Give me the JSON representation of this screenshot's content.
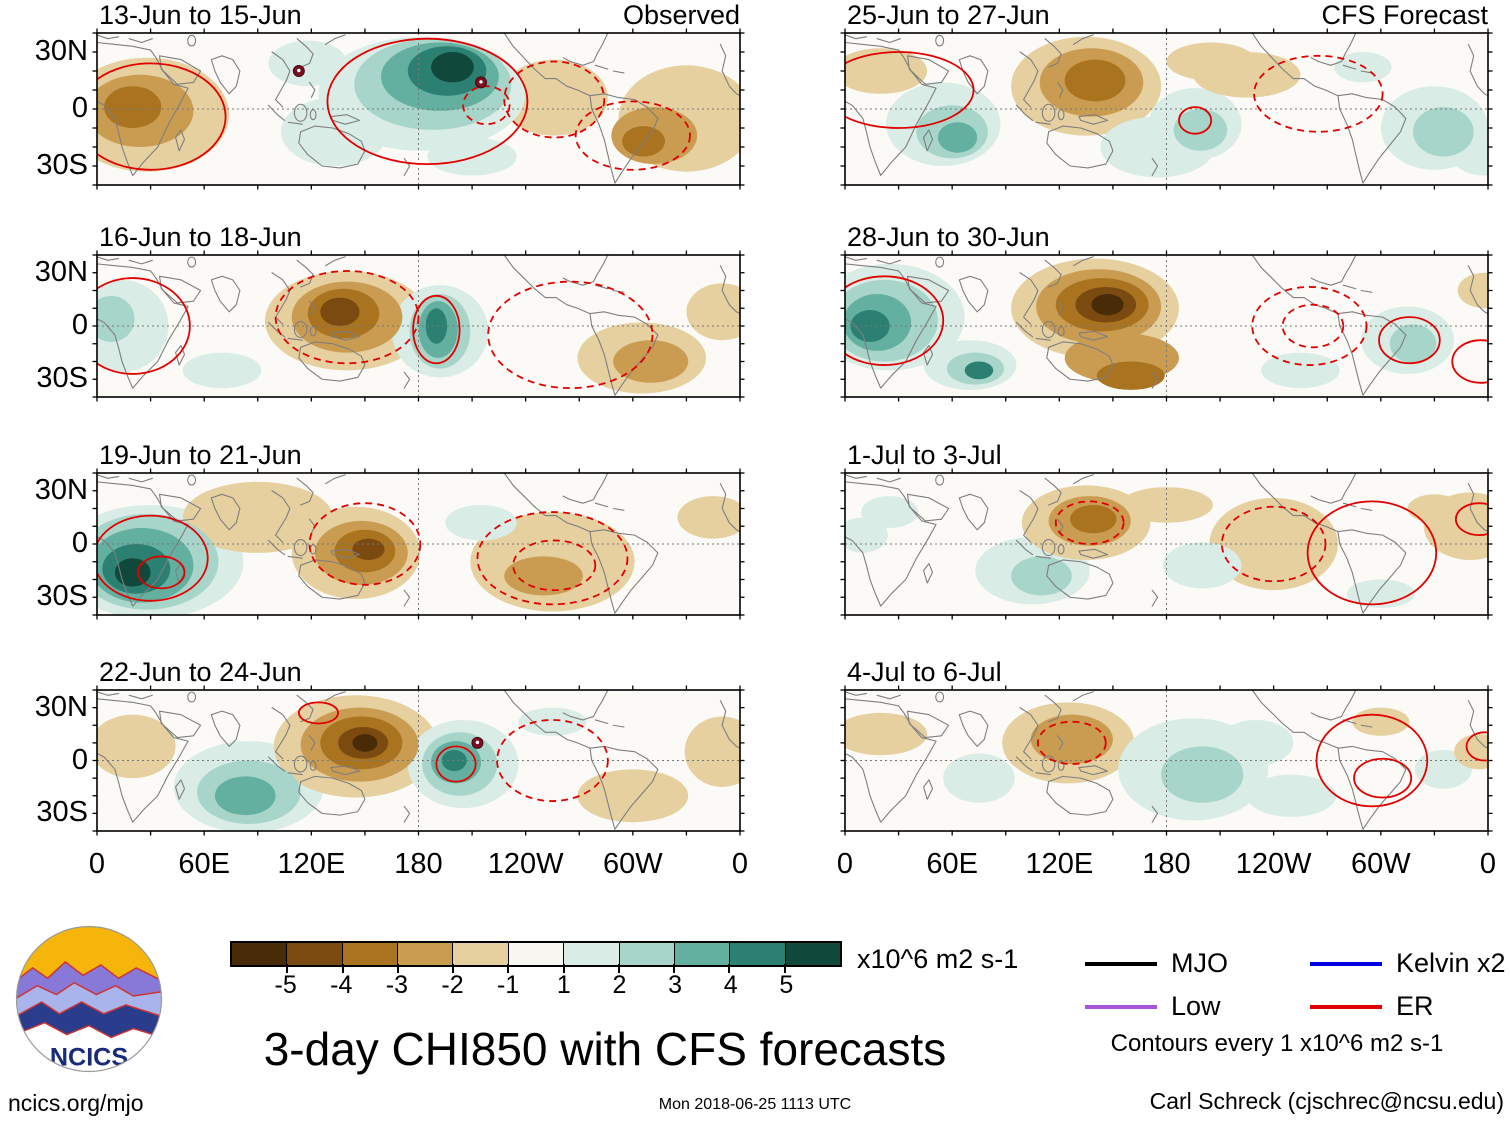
{
  "title": "3-day CHI850 with CFS forecasts",
  "footer": {
    "left": "ncics.org/mjo",
    "center": "Mon 2018-06-25 1113 UTC",
    "right": "Carl Schreck (cjschrec@ncsu.edu)"
  },
  "logo_text": "NCICS",
  "chart_data": {
    "type": "heatmap",
    "title": "3-day CHI850 with CFS forecasts",
    "observed_label": "Observed",
    "forecast_label": "CFS Forecast",
    "axis": {
      "x_ticks": [
        "0",
        "60E",
        "120E",
        "180",
        "120W",
        "60W",
        "0"
      ],
      "x_tick_lons": [
        0,
        60,
        120,
        180,
        240,
        300,
        360
      ],
      "y_ticks": [
        "30N",
        "0",
        "30S"
      ],
      "y_tick_lats": [
        30,
        0,
        -30
      ],
      "lon_range": [
        0,
        360
      ],
      "lat_range": [
        -40,
        40
      ],
      "grid": "dotted at equator and 180"
    },
    "colorbar": {
      "levels": [
        "-5",
        "-4",
        "-3",
        "-2",
        "-1",
        "1",
        "2",
        "3",
        "4",
        "5"
      ],
      "colors": [
        "#4a2b07",
        "#7a4a10",
        "#a9731f",
        "#c99c51",
        "#e6d0a0",
        "#f8f7f2",
        "#d9ece6",
        "#a8d5c9",
        "#63b0a0",
        "#2b8071",
        "#10493c"
      ],
      "units": "x10^6 m2 s-1"
    },
    "legend": {
      "items": [
        {
          "label": "MJO",
          "color": "#000000"
        },
        {
          "label": "Kelvin x2",
          "color": "#0000e0"
        },
        {
          "label": "Low",
          "color": "#a855d8"
        },
        {
          "label": "ER",
          "color": "#e10000"
        }
      ],
      "note": "Contours every 1 x10^6 m2 s-1"
    },
    "panels": [
      {
        "title": "13-Jun to 15-Jun",
        "corner": "Observed",
        "blobs": [
          [
            28,
            -3,
            46,
            30,
            -1
          ],
          [
            24,
            -1,
            30,
            19,
            -2
          ],
          [
            20,
            1,
            16,
            11,
            -3
          ],
          [
            330,
            -5,
            38,
            28,
            -1
          ],
          [
            312,
            -14,
            24,
            15,
            -2
          ],
          [
            306,
            -17,
            12,
            8,
            -3
          ],
          [
            256,
            6,
            30,
            20,
            -1
          ],
          [
            182,
            8,
            58,
            30,
            1
          ],
          [
            188,
            13,
            44,
            24,
            2
          ],
          [
            192,
            17,
            33,
            18,
            3
          ],
          [
            196,
            20,
            22,
            13,
            4
          ],
          [
            199,
            22,
            12,
            8,
            5
          ],
          [
            133,
            -12,
            30,
            18,
            1
          ],
          [
            118,
            24,
            22,
            12,
            1
          ],
          [
            210,
            -25,
            25,
            10,
            1
          ]
        ],
        "contours": [
          [
            30,
            -4,
            42,
            28,
            0
          ],
          [
            185,
            4,
            56,
            33,
            0
          ],
          [
            256,
            5,
            28,
            20,
            1
          ],
          [
            300,
            -14,
            32,
            18,
            1
          ],
          [
            218,
            2,
            13,
            10,
            1
          ]
        ],
        "markers": [
          [
            113,
            20
          ],
          [
            215,
            14
          ]
        ]
      },
      {
        "title": "25-Jun to 27-Jun",
        "corner": "CFS Forecast",
        "blobs": [
          [
            20,
            20,
            26,
            12,
            -1
          ],
          [
            55,
            -8,
            32,
            22,
            1
          ],
          [
            60,
            -12,
            20,
            14,
            2
          ],
          [
            63,
            -15,
            11,
            8,
            3
          ],
          [
            135,
            12,
            42,
            26,
            -1
          ],
          [
            138,
            14,
            29,
            18,
            -2
          ],
          [
            140,
            15,
            17,
            11,
            -3
          ],
          [
            175,
            -20,
            32,
            16,
            1
          ],
          [
            196,
            -8,
            26,
            19,
            1
          ],
          [
            199,
            -11,
            15,
            11,
            2
          ],
          [
            225,
            18,
            30,
            12,
            -1
          ],
          [
            205,
            25,
            25,
            10,
            -1
          ],
          [
            330,
            -10,
            30,
            22,
            1
          ],
          [
            335,
            -12,
            17,
            13,
            2
          ],
          [
            290,
            22,
            16,
            8,
            1
          ],
          [
            358,
            -25,
            18,
            10,
            1
          ]
        ],
        "contours": [
          [
            30,
            10,
            42,
            20,
            0
          ],
          [
            265,
            8,
            36,
            20,
            1
          ],
          [
            196,
            -6,
            9,
            7,
            0
          ]
        ],
        "markers": []
      },
      {
        "title": "16-Jun to 18-Jun",
        "corner": "",
        "blobs": [
          [
            14,
            0,
            26,
            26,
            1
          ],
          [
            8,
            4,
            13,
            13,
            2
          ],
          [
            70,
            -25,
            22,
            10,
            1
          ],
          [
            140,
            3,
            46,
            28,
            -1
          ],
          [
            140,
            5,
            31,
            20,
            -2
          ],
          [
            138,
            7,
            20,
            14,
            -3
          ],
          [
            136,
            8,
            11,
            8,
            -4
          ],
          [
            192,
            -3,
            27,
            26,
            1
          ],
          [
            192,
            -3,
            17,
            21,
            2
          ],
          [
            191,
            -2,
            11,
            16,
            3
          ],
          [
            190,
            0,
            6,
            10,
            4
          ],
          [
            305,
            -18,
            36,
            20,
            -1
          ],
          [
            310,
            -20,
            21,
            12,
            -2
          ],
          [
            350,
            8,
            20,
            16,
            -1
          ]
        ],
        "contours": [
          [
            20,
            0,
            32,
            27,
            0
          ],
          [
            140,
            5,
            40,
            26,
            1
          ],
          [
            265,
            -5,
            46,
            30,
            1
          ],
          [
            190,
            -2,
            13,
            19,
            0
          ]
        ],
        "markers": []
      },
      {
        "title": "28-Jun to 30-Jun",
        "corner": "",
        "blobs": [
          [
            25,
            5,
            42,
            30,
            1
          ],
          [
            22,
            3,
            30,
            23,
            2
          ],
          [
            18,
            2,
            19,
            16,
            3
          ],
          [
            14,
            0,
            11,
            9,
            4
          ],
          [
            70,
            -22,
            26,
            14,
            1
          ],
          [
            73,
            -24,
            16,
            9,
            2
          ],
          [
            75,
            -25,
            8,
            5,
            4
          ],
          [
            140,
            10,
            47,
            28,
            -1
          ],
          [
            142,
            11,
            35,
            21,
            -2
          ],
          [
            144,
            12,
            26,
            15,
            -3
          ],
          [
            146,
            12,
            17,
            10,
            -4
          ],
          [
            147,
            12,
            9,
            6,
            -5
          ],
          [
            155,
            -18,
            32,
            14,
            -2
          ],
          [
            160,
            -28,
            19,
            8,
            -3
          ],
          [
            315,
            -8,
            26,
            19,
            1
          ],
          [
            318,
            -10,
            13,
            11,
            2
          ],
          [
            255,
            -25,
            22,
            10,
            1
          ],
          [
            358,
            20,
            15,
            10,
            -1
          ]
        ],
        "contours": [
          [
            22,
            3,
            33,
            25,
            0
          ],
          [
            260,
            0,
            32,
            22,
            1
          ],
          [
            262,
            0,
            17,
            12,
            1
          ],
          [
            316,
            -8,
            17,
            13,
            0
          ],
          [
            356,
            -20,
            16,
            12,
            0
          ]
        ],
        "markers": []
      },
      {
        "title": "19-Jun to 21-Jun",
        "corner": "",
        "blobs": [
          [
            30,
            -10,
            52,
            32,
            1
          ],
          [
            28,
            -10,
            40,
            27,
            2
          ],
          [
            25,
            -12,
            29,
            21,
            3
          ],
          [
            22,
            -14,
            19,
            14,
            4
          ],
          [
            20,
            -16,
            10,
            8,
            5
          ],
          [
            90,
            15,
            42,
            20,
            -1
          ],
          [
            145,
            -5,
            36,
            26,
            -1
          ],
          [
            148,
            -5,
            26,
            18,
            -2
          ],
          [
            150,
            -4,
            17,
            12,
            -3
          ],
          [
            152,
            -3,
            9,
            6,
            -4
          ],
          [
            255,
            -10,
            46,
            28,
            -1
          ],
          [
            250,
            -18,
            22,
            11,
            -2
          ],
          [
            215,
            12,
            20,
            10,
            1
          ],
          [
            345,
            15,
            20,
            12,
            -1
          ]
        ],
        "contours": [
          [
            30,
            -8,
            32,
            24,
            0
          ],
          [
            36,
            -16,
            13,
            9,
            0
          ],
          [
            150,
            0,
            31,
            23,
            1
          ],
          [
            255,
            -8,
            42,
            26,
            1
          ],
          [
            256,
            -12,
            23,
            14,
            1
          ]
        ],
        "markers": []
      },
      {
        "title": "1-Jul to 3-Jul",
        "corner": "",
        "blobs": [
          [
            25,
            18,
            16,
            9,
            1
          ],
          [
            10,
            5,
            14,
            10,
            1
          ],
          [
            105,
            -15,
            32,
            19,
            1
          ],
          [
            110,
            -18,
            17,
            11,
            2
          ],
          [
            135,
            12,
            36,
            21,
            -1
          ],
          [
            137,
            13,
            23,
            14,
            -2
          ],
          [
            139,
            14,
            13,
            8,
            -3
          ],
          [
            180,
            22,
            26,
            10,
            -1
          ],
          [
            240,
            0,
            36,
            26,
            -1
          ],
          [
            245,
            -5,
            20,
            14,
            -1
          ],
          [
            350,
            10,
            26,
            19,
            -1
          ],
          [
            200,
            -12,
            22,
            13,
            1
          ],
          [
            300,
            -28,
            19,
            8,
            1
          ],
          [
            330,
            20,
            15,
            8,
            -1
          ]
        ],
        "contours": [
          [
            137,
            12,
            19,
            12,
            1
          ],
          [
            240,
            0,
            29,
            21,
            1
          ],
          [
            295,
            -5,
            36,
            29,
            0
          ],
          [
            355,
            14,
            13,
            9,
            0
          ]
        ],
        "markers": []
      },
      {
        "title": "22-Jun to 24-Jun",
        "corner": "",
        "blobs": [
          [
            85,
            -15,
            42,
            26,
            1
          ],
          [
            85,
            -18,
            29,
            18,
            2
          ],
          [
            83,
            -20,
            17,
            11,
            3
          ],
          [
            20,
            8,
            24,
            18,
            -1
          ],
          [
            145,
            8,
            46,
            29,
            -1
          ],
          [
            147,
            9,
            33,
            21,
            -2
          ],
          [
            148,
            10,
            23,
            15,
            -3
          ],
          [
            149,
            10,
            14,
            9,
            -4
          ],
          [
            150,
            10,
            7,
            5,
            -5
          ],
          [
            205,
            -2,
            31,
            25,
            1
          ],
          [
            203,
            -2,
            21,
            18,
            2
          ],
          [
            201,
            -1,
            14,
            12,
            3
          ],
          [
            200,
            0,
            7,
            6,
            4
          ],
          [
            255,
            22,
            19,
            8,
            1
          ],
          [
            300,
            -20,
            31,
            15,
            -1
          ],
          [
            350,
            5,
            21,
            20,
            -1
          ]
        ],
        "contours": [
          [
            201,
            -2,
            11,
            10,
            0
          ],
          [
            255,
            0,
            31,
            23,
            1
          ],
          [
            124,
            27,
            11,
            6,
            0
          ]
        ],
        "markers": [
          [
            213,
            10
          ]
        ]
      },
      {
        "title": "4-Jul to 6-Jul",
        "corner": "",
        "blobs": [
          [
            20,
            15,
            26,
            12,
            -1
          ],
          [
            125,
            10,
            37,
            23,
            -1
          ],
          [
            127,
            12,
            23,
            14,
            -2
          ],
          [
            195,
            -5,
            42,
            29,
            1
          ],
          [
            200,
            -8,
            23,
            16,
            2
          ],
          [
            230,
            10,
            21,
            13,
            1
          ],
          [
            250,
            -20,
            25,
            12,
            1
          ],
          [
            335,
            -5,
            16,
            11,
            1
          ],
          [
            300,
            22,
            16,
            8,
            -1
          ],
          [
            355,
            5,
            14,
            10,
            -1
          ],
          [
            75,
            -10,
            20,
            14,
            1
          ]
        ],
        "contours": [
          [
            127,
            10,
            19,
            12,
            1
          ],
          [
            295,
            0,
            31,
            26,
            0
          ],
          [
            301,
            -10,
            16,
            11,
            0
          ],
          [
            358,
            8,
            10,
            8,
            0
          ]
        ],
        "markers": []
      }
    ]
  }
}
